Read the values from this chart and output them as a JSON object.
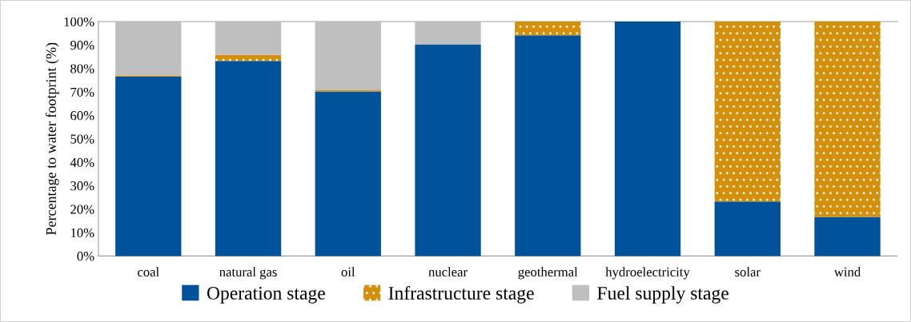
{
  "chart_data": {
    "type": "bar",
    "stacked": true,
    "ylabel": "Percentage to water footprint (%)",
    "categories": [
      "coal",
      "natural gas",
      "oil",
      "nuclear",
      "geothermal",
      "hydroelectricity",
      "solar",
      "wind"
    ],
    "series": [
      {
        "name": "Operation stage",
        "color": "#00539b",
        "values": [
          76.5,
          83.2,
          70.2,
          90.3,
          94.1,
          100,
          23.2,
          16.7
        ]
      },
      {
        "name": "Infrastructure stage",
        "color": "#d4900a",
        "values": [
          0.5,
          2.6,
          0.5,
          0,
          5.9,
          0,
          76.8,
          83.3
        ]
      },
      {
        "name": "Fuel supply stage",
        "color": "#bfbfbf",
        "values": [
          23,
          14.2,
          29.3,
          9.7,
          0,
          0,
          0,
          0
        ]
      }
    ],
    "ylim": [
      0,
      100
    ],
    "yticks": [
      {
        "value": 0,
        "label": "0%"
      },
      {
        "value": 10,
        "label": "10%"
      },
      {
        "value": 20,
        "label": "20%"
      },
      {
        "value": 30,
        "label": "30%"
      },
      {
        "value": 40,
        "label": "40%"
      },
      {
        "value": 50,
        "label": "50%"
      },
      {
        "value": 60,
        "label": "60%"
      },
      {
        "value": 70,
        "label": "70%"
      },
      {
        "value": 80,
        "label": "80%"
      },
      {
        "value": 90,
        "label": "90%"
      },
      {
        "value": 100,
        "label": "100%"
      }
    ],
    "grid": false,
    "legend": "bottom"
  }
}
